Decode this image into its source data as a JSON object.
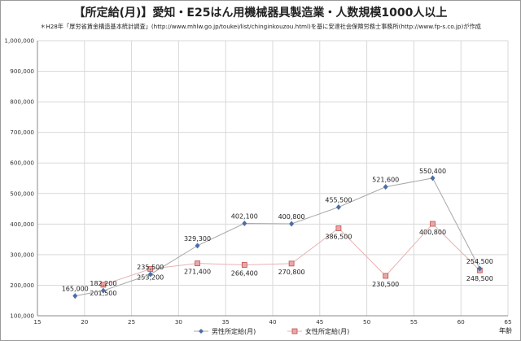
{
  "chart_data": {
    "type": "line",
    "title": "【所定給(月)】愛知・E25はん用機械器具製造業・人数規模1000人以上",
    "subtitle": "＊H28年「厚労省賃金構造基本統計調査」(http://www.mhlw.go.jp/toukei/list/chinginkouzou.html)を基に安達社会保険労務士事務所(http://www.fp-s.co.jp)が作成",
    "xlabel": "年齢",
    "ylabel": "",
    "xlim": [
      15,
      65
    ],
    "ylim": [
      100000,
      1000000
    ],
    "x_ticks": [
      15,
      20,
      25,
      30,
      35,
      40,
      45,
      50,
      55,
      60,
      65
    ],
    "y_ticks": [
      100000,
      200000,
      300000,
      400000,
      500000,
      600000,
      700000,
      800000,
      900000,
      1000000
    ],
    "x_tick_labels": [
      "15",
      "20",
      "25",
      "30",
      "35",
      "40",
      "45",
      "50",
      "55",
      "60",
      "65"
    ],
    "y_tick_labels": [
      "100,000",
      "200,000",
      "300,000",
      "400,000",
      "500,000",
      "600,000",
      "700,000",
      "800,000",
      "900,000",
      "1,000,000"
    ],
    "grid": true,
    "legend_position": "bottom",
    "series": [
      {
        "name": "男性所定給(月)",
        "color": "#4a6fa5",
        "marker": "diamond",
        "x": [
          19,
          22,
          27,
          32,
          37,
          42,
          47,
          52,
          57,
          62
        ],
        "values": [
          165000,
          182200,
          235500,
          329300,
          402100,
          400800,
          455500,
          521600,
          550400,
          254500
        ],
        "labels": [
          "165,000",
          "182,200",
          "235,500",
          "329,300",
          "402,100",
          "400,800",
          "455,500",
          "521,600",
          "550,400",
          "254,500"
        ]
      },
      {
        "name": "女性所定給(月)",
        "color": "#d27b7b",
        "marker": "square",
        "x": [
          22,
          27,
          32,
          37,
          42,
          47,
          52,
          57,
          62
        ],
        "values": [
          201500,
          253200,
          271400,
          266400,
          270800,
          386500,
          230500,
          400800,
          248500
        ],
        "labels": [
          "201,500",
          "253,200",
          "271,400",
          "266,400",
          "270,800",
          "386,500",
          "230,500",
          "400,800",
          "248,500"
        ]
      }
    ]
  }
}
